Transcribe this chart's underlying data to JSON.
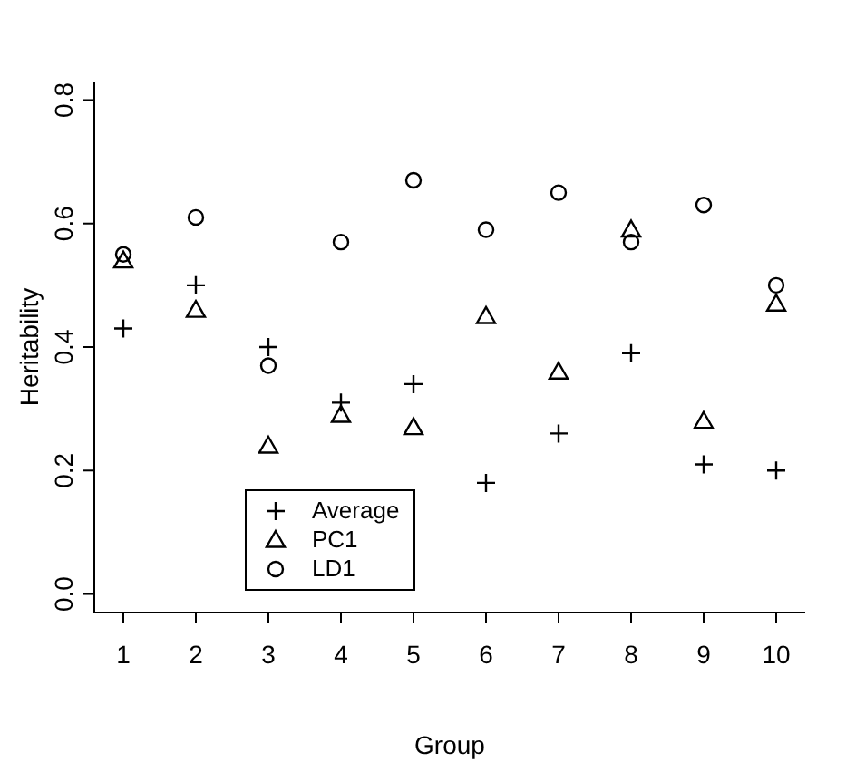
{
  "chart_data": {
    "type": "scatter",
    "xlabel": "Group",
    "ylabel": "Heritability",
    "x": [
      1,
      2,
      3,
      4,
      5,
      6,
      7,
      8,
      9,
      10
    ],
    "xlim": [
      0.6,
      10.4
    ],
    "xticks": [
      1,
      2,
      3,
      4,
      5,
      6,
      7,
      8,
      9,
      10
    ],
    "ylim": [
      -0.03,
      0.83
    ],
    "yticks": [
      {
        "value": 0,
        "label": "0.0"
      },
      0.2,
      0.4,
      0.6,
      0.8
    ],
    "grid": false,
    "legend": "bottom left",
    "series": [
      {
        "name": "Average",
        "color": "#000000",
        "marker": "cross",
        "values": [
          0.43,
          0.5,
          0.4,
          0.31,
          0.34,
          0.18,
          0.26,
          0.39,
          0.21,
          0.2
        ]
      },
      {
        "name": "PC1",
        "color": "#000000",
        "marker": "triangle",
        "values": [
          0.54,
          0.46,
          0.24,
          0.29,
          0.27,
          0.45,
          0.36,
          0.59,
          0.28,
          0.47
        ]
      },
      {
        "name": "LD1",
        "color": "#000000",
        "marker": "circle",
        "values": [
          0.55,
          0.61,
          0.37,
          0.57,
          0.67,
          0.59,
          0.65,
          0.57,
          0.63,
          0.5
        ]
      }
    ]
  }
}
